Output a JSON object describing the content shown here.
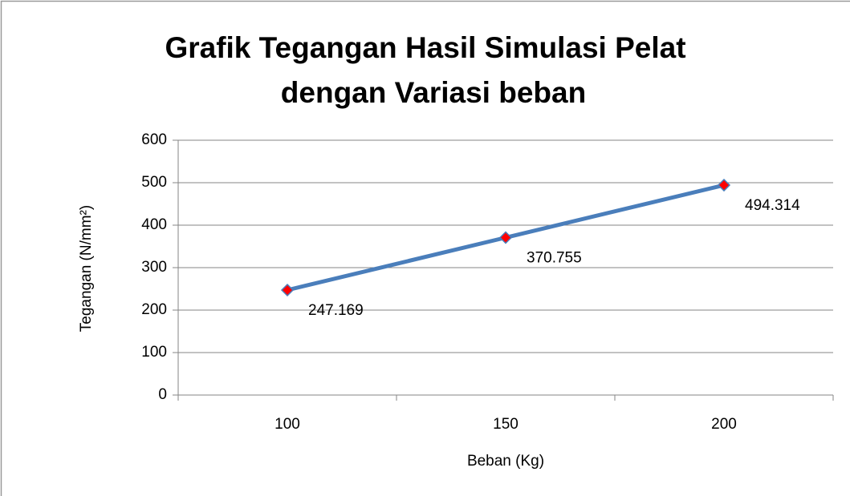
{
  "chart_data": {
    "type": "line",
    "title": [
      "Grafik Tegangan Hasil Simulasi Pelat",
      "dengan Variasi beban"
    ],
    "x_label": "Beban (Kg)",
    "y_label": "Tegangan (N/mm²)",
    "categories": [
      "100",
      "150",
      "200"
    ],
    "values": [
      247.169,
      370.755,
      494.314
    ],
    "color": "#4a7ebb",
    "marker_color": "#ff0000",
    "ylim": [
      0,
      600
    ],
    "yticks": [
      0,
      100,
      200,
      300,
      400,
      500,
      600
    ],
    "grid": true
  }
}
